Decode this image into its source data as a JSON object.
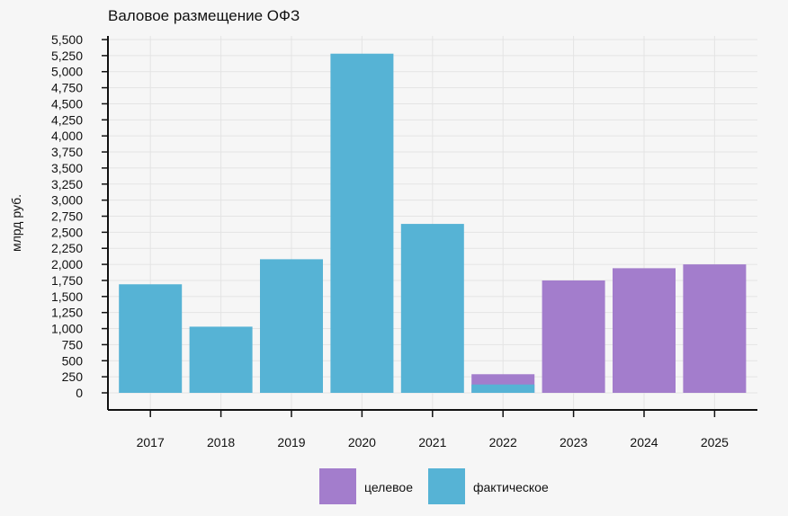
{
  "chart_data": {
    "type": "bar",
    "title": "Валовое размещение ОФЗ",
    "ylabel": "млрд руб.",
    "xlabel": "",
    "categories": [
      "2017",
      "2018",
      "2019",
      "2020",
      "2021",
      "2022",
      "2023",
      "2024",
      "2025"
    ],
    "series": [
      {
        "name": "целевое",
        "color": "#a37dcc",
        "values": [
          null,
          null,
          null,
          null,
          null,
          290,
          1750,
          1940,
          2000
        ]
      },
      {
        "name": "фактическое",
        "color": "#56b3d5",
        "values": [
          1690,
          1030,
          2080,
          5280,
          2630,
          130,
          null,
          null,
          null
        ]
      }
    ],
    "ylim": [
      0,
      5500
    ],
    "yticks": [
      0,
      250,
      500,
      750,
      1000,
      1250,
      1500,
      1750,
      2000,
      2250,
      2500,
      2750,
      3000,
      3250,
      3500,
      3750,
      4000,
      4250,
      4500,
      4750,
      5000,
      5250,
      5500
    ],
    "ytick_labels": [
      "0",
      "250",
      "500",
      "750",
      "1,000",
      "1,250",
      "1,500",
      "1,750",
      "2,000",
      "2,250",
      "2,500",
      "2,750",
      "3,000",
      "3,250",
      "3,500",
      "3,750",
      "4,000",
      "4,250",
      "4,500",
      "4,750",
      "5,000",
      "5,250",
      "5,500"
    ],
    "grid": true,
    "legend_position": "bottom-center"
  }
}
